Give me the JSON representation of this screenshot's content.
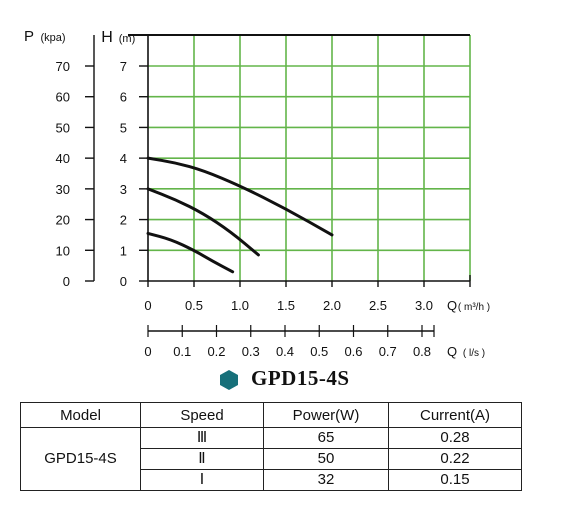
{
  "chart_data": {
    "type": "line",
    "y_axes": [
      {
        "label_main": "P",
        "label_unit": "(kpa)",
        "ticks": [
          "0",
          "10",
          "20",
          "30",
          "40",
          "50",
          "60",
          "70"
        ],
        "range": [
          0,
          70
        ]
      },
      {
        "label_main": "H",
        "label_unit": "(m)",
        "ticks": [
          "0",
          "1",
          "2",
          "3",
          "4",
          "5",
          "6",
          "7"
        ],
        "range": [
          0,
          7
        ]
      }
    ],
    "x_axes": [
      {
        "label_main": "Q",
        "label_unit": "( m³/h )",
        "ticks": [
          "0",
          "0.5",
          "1.0",
          "1.5",
          "2.0",
          "2.5",
          "3.0"
        ],
        "range": [
          0,
          3.5
        ]
      },
      {
        "label_main": "Q",
        "label_unit": "( l/s )",
        "ticks": [
          "0",
          "0.1",
          "0.2",
          "0.3",
          "0.4",
          "0.5",
          "0.6",
          "0.7",
          "0.8"
        ],
        "range": [
          0,
          0.8
        ]
      }
    ],
    "series": [
      {
        "speed": "III",
        "points": [
          [
            0,
            4.0
          ],
          [
            0.3,
            3.85
          ],
          [
            0.6,
            3.6
          ],
          [
            1.0,
            3.1
          ],
          [
            1.5,
            2.35
          ],
          [
            2.0,
            1.5
          ]
        ]
      },
      {
        "speed": "II",
        "points": [
          [
            0,
            3.0
          ],
          [
            0.3,
            2.65
          ],
          [
            0.6,
            2.2
          ],
          [
            0.9,
            1.6
          ],
          [
            1.2,
            0.85
          ]
        ]
      },
      {
        "speed": "I",
        "points": [
          [
            0,
            1.55
          ],
          [
            0.25,
            1.35
          ],
          [
            0.5,
            1.0
          ],
          [
            0.7,
            0.65
          ],
          [
            0.92,
            0.3
          ]
        ]
      }
    ],
    "grid": true
  },
  "model_title": "GPD15-4S",
  "colors": {
    "grid": "#63b54a",
    "accent": "#17707a",
    "curve": "#111111"
  },
  "table": {
    "headers": [
      "Model",
      "Speed",
      "Power(W)",
      "Current(A)"
    ],
    "model": "GPD15-4S",
    "rows": [
      {
        "speed": "Ⅲ",
        "power": "65",
        "current": "0.28"
      },
      {
        "speed": "Ⅱ",
        "power": "50",
        "current": "0.22"
      },
      {
        "speed": "Ⅰ",
        "power": "32",
        "current": "0.15"
      }
    ]
  }
}
